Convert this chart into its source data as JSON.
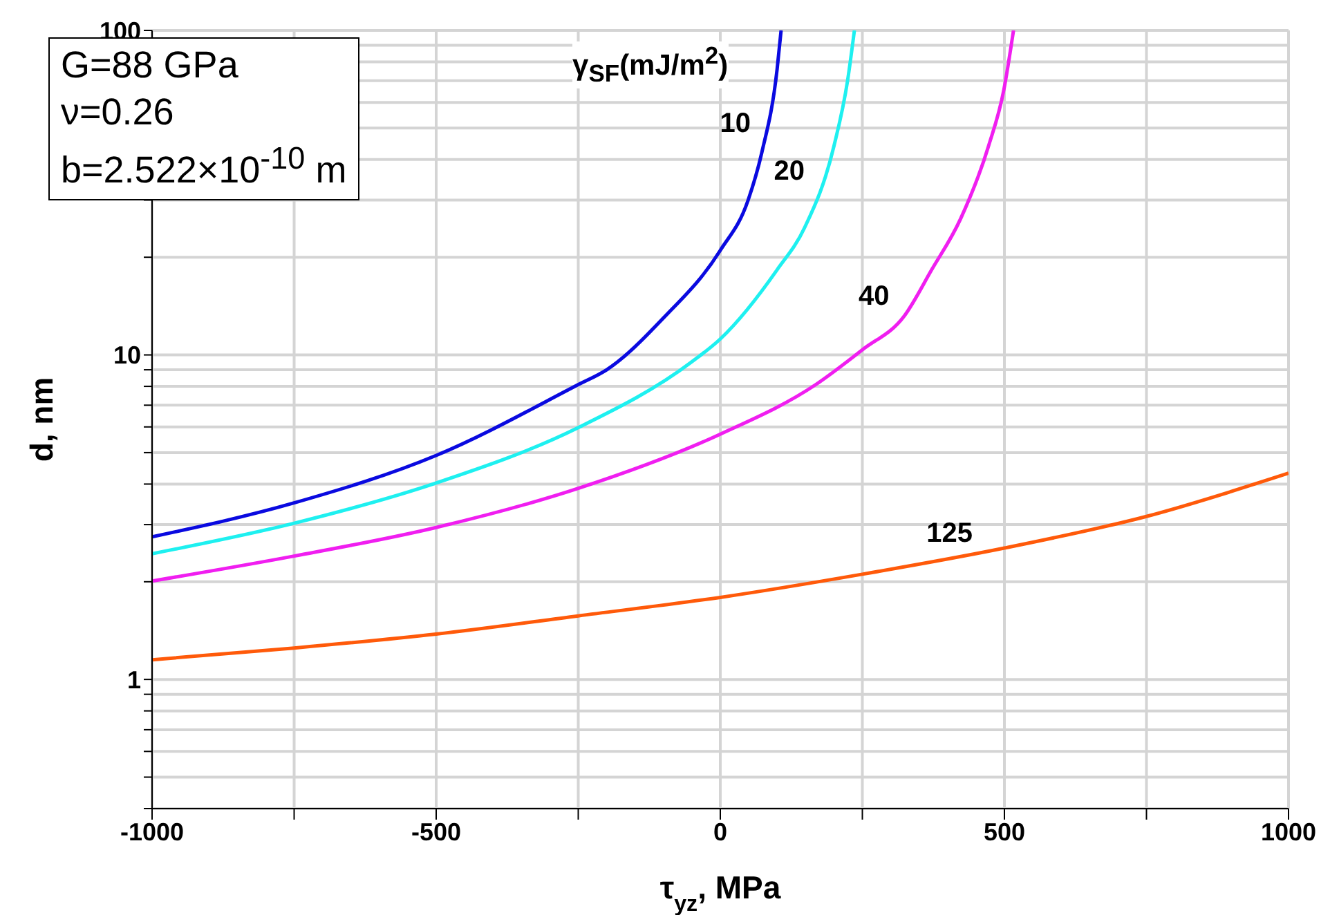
{
  "chart_data": {
    "type": "line",
    "xlabel": "τ$_{yz}$, MPa",
    "ylabel": "d, nm",
    "legend_title": "γ$_{SF}$(mJ/m$^{2}$)",
    "log": "y",
    "grid": true,
    "marker": "none",
    "line_style": "solid",
    "xlim": [
      -1000,
      1000
    ],
    "xticks": [
      -1000,
      {
        "value": -750,
        "label": null
      },
      -500,
      {
        "value": -250,
        "label": null
      },
      0,
      {
        "value": 250,
        "label": null
      },
      500,
      {
        "value": 750,
        "label": null
      },
      1000
    ],
    "ylim": [
      0.4,
      100
    ],
    "yticks": [
      {
        "value": 0.4,
        "label": null
      },
      {
        "value": 0.5,
        "label": null
      },
      {
        "value": 0.6,
        "label": null
      },
      {
        "value": 0.7,
        "label": null
      },
      {
        "value": 0.8,
        "label": null
      },
      {
        "value": 0.9,
        "label": null
      },
      1,
      {
        "value": 2,
        "label": null
      },
      {
        "value": 3,
        "label": null
      },
      {
        "value": 4,
        "label": null
      },
      {
        "value": 5,
        "label": null
      },
      {
        "value": 6,
        "label": null
      },
      {
        "value": 7,
        "label": null
      },
      {
        "value": 8,
        "label": null
      },
      {
        "value": 9,
        "label": null
      },
      10,
      {
        "value": 20,
        "label": null
      },
      {
        "value": 30,
        "label": null
      },
      {
        "value": 40,
        "label": null
      },
      {
        "value": 50,
        "label": null
      },
      {
        "value": 60,
        "label": null
      },
      {
        "value": 70,
        "label": null
      },
      {
        "value": 80,
        "label": null
      },
      {
        "value": 90,
        "label": null
      },
      100
    ],
    "series": [
      {
        "color": "#0a0ae0",
        "x": [
          -1000,
          -750,
          -500,
          -250,
          -200,
          -100,
          0,
          49,
          73,
          100,
          107
        ],
        "values": [
          2.75,
          3.5,
          4.9,
          8.1,
          9.0,
          13,
          21,
          30,
          42,
          76,
          100
        ]
      },
      {
        "color": "#1ef0f0",
        "x": [
          -1000,
          -750,
          -500,
          -250,
          -51,
          0,
          100,
          148,
          200,
          224,
          236
        ],
        "values": [
          2.44,
          3.03,
          4.03,
          5.97,
          9.5,
          11.2,
          18.3,
          24.6,
          44,
          70,
          100
        ]
      },
      {
        "color": "#f01ef0",
        "x": [
          -1000,
          -750,
          -500,
          -250,
          0,
          168,
          251,
          324,
          372,
          423,
          472,
          499,
          516
        ],
        "values": [
          2.01,
          2.4,
          2.94,
          3.88,
          5.7,
          8.1,
          10.4,
          13.2,
          18.3,
          26.3,
          44,
          65.6,
          100
        ]
      },
      {
        "color": "#ff5a0a",
        "x": [
          -1000,
          -750,
          -500,
          -250,
          0,
          250,
          500,
          750,
          1000
        ],
        "values": [
          1.15,
          1.25,
          1.38,
          1.57,
          1.79,
          2.11,
          2.54,
          3.18,
          4.32
        ]
      }
    ],
    "annotations": [
      "G=88 GPa",
      "ν=0.26",
      "b=2.522×10$^{-10}$ m",
      {
        "text": "10",
        "x": 80,
        "y": 45
      },
      {
        "text": "20",
        "x": 175,
        "y": 32
      },
      {
        "text": "40",
        "x": 324,
        "y": 13.2
      },
      {
        "text": "125",
        "x": 457,
        "y": 2.46
      }
    ]
  }
}
